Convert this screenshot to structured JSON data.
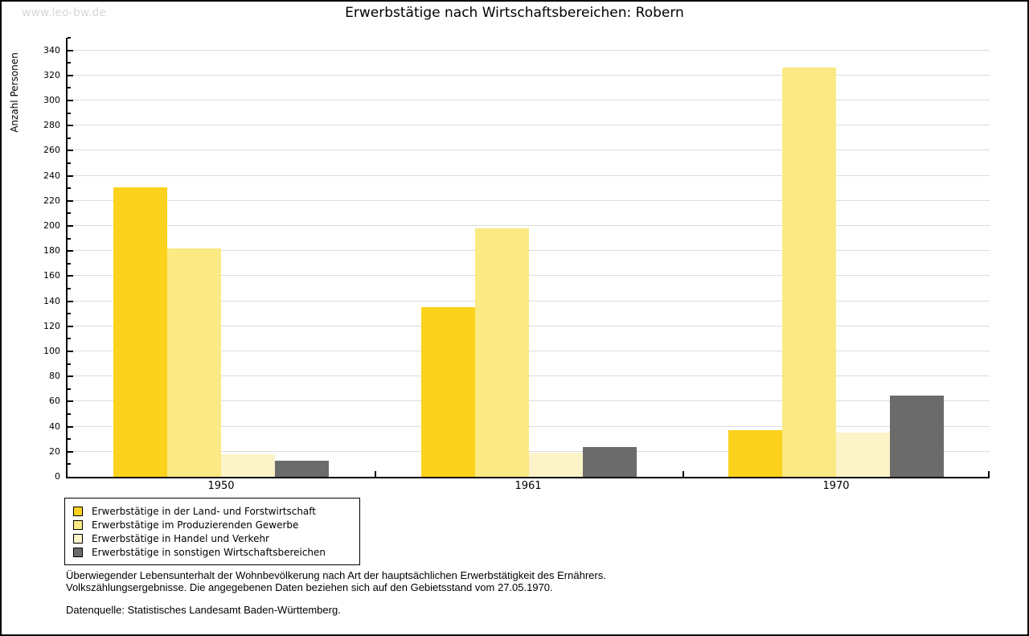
{
  "watermark": "www.leo-bw.de",
  "title": "Erwerbstätige nach Wirtschaftsbereichen: Robern",
  "chart_data": {
    "type": "bar",
    "title": "Erwerbstätige nach Wirtschaftsbereichen: Robern",
    "xlabel": "",
    "ylabel": "Anzahl Personen",
    "categories": [
      "1950",
      "1961",
      "1970"
    ],
    "series": [
      {
        "name": "Erwerbstätige in der Land- und Forstwirtschaft",
        "color": "#FCD21C",
        "values": [
          231,
          135,
          37
        ]
      },
      {
        "name": "Erwerbstätige im Produzierenden Gewerbe",
        "color": "#FBE983",
        "values": [
          182,
          198,
          326
        ]
      },
      {
        "name": "Erwerbstätige in Handel und Verkehr",
        "color": "#FCF3C9",
        "values": [
          18,
          19,
          35
        ]
      },
      {
        "name": "Erwerbstätige in sonstigen Wirtschaftsbereichen",
        "color": "#6B6B6B",
        "values": [
          13,
          24,
          65
        ]
      }
    ],
    "ylim": [
      0,
      350
    ],
    "ytick_step": 20,
    "ytick_label_max": 340,
    "minor_tick_step": 10,
    "grid": true,
    "legend_position": "bottom-left"
  },
  "colors": {
    "grid": "#dcdcdc",
    "axis": "#000000",
    "watermark": "#d8d8d8"
  },
  "footer": {
    "line1": "Überwiegender Lebensunterhalt der Wohnbevölkerung nach Art der hauptsächlichen Erwerbstätigkeit des Ernährers.",
    "line2": "Volkszählungsergebnisse. Die angegebenen Daten beziehen sich auf den Gebietsstand vom 27.05.1970.",
    "source": "Datenquelle: Statistisches Landesamt Baden-Württemberg."
  }
}
